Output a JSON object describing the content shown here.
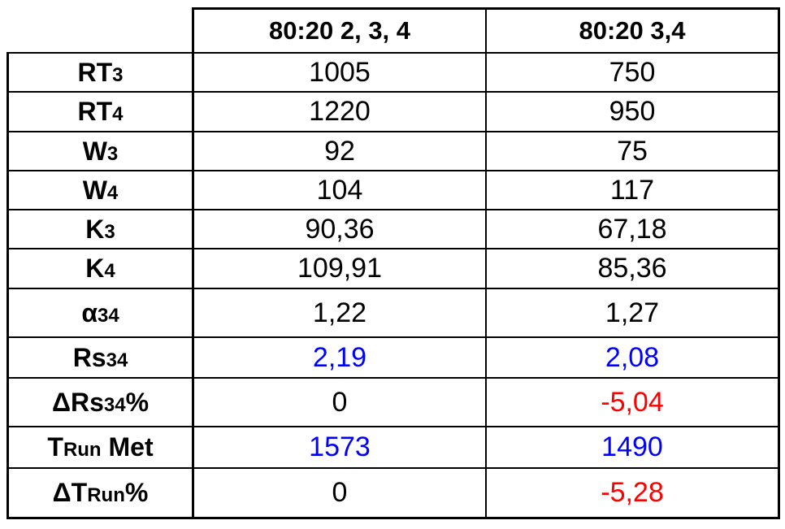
{
  "table": {
    "header": [
      "80:20 2, 3, 4",
      "80:20 3,4"
    ],
    "rows": [
      {
        "label": [
          {
            "text": "RT"
          },
          {
            "text": "3",
            "small": true
          }
        ],
        "cells": [
          {
            "text": "1005"
          },
          {
            "text": "750"
          }
        ]
      },
      {
        "label": [
          {
            "text": "RT"
          },
          {
            "text": "4",
            "small": true
          }
        ],
        "cells": [
          {
            "text": "1220"
          },
          {
            "text": "950"
          }
        ]
      },
      {
        "label": [
          {
            "text": "W"
          },
          {
            "text": "3",
            "small": true
          }
        ],
        "cells": [
          {
            "text": "92"
          },
          {
            "text": "75"
          }
        ]
      },
      {
        "label": [
          {
            "text": "W"
          },
          {
            "text": "4",
            "small": true
          }
        ],
        "cells": [
          {
            "text": "104"
          },
          {
            "text": "117"
          }
        ]
      },
      {
        "label": [
          {
            "text": "K"
          },
          {
            "text": "3",
            "small": true
          }
        ],
        "cells": [
          {
            "text": "90,36"
          },
          {
            "text": "67,18"
          }
        ]
      },
      {
        "label": [
          {
            "text": "K"
          },
          {
            "text": "4",
            "small": true
          }
        ],
        "cells": [
          {
            "text": "109,91"
          },
          {
            "text": "85,36"
          }
        ]
      },
      {
        "label": [
          {
            "text": "α"
          },
          {
            "text": "34",
            "small": true
          }
        ],
        "cells": [
          {
            "text": "1,22"
          },
          {
            "text": "1,27"
          }
        ]
      },
      {
        "label": [
          {
            "text": "Rs"
          },
          {
            "text": "34",
            "small": true
          }
        ],
        "cells": [
          {
            "text": "2,19",
            "color": "#0000ff"
          },
          {
            "text": "2,08",
            "color": "#0000ff"
          }
        ]
      },
      {
        "label": [
          {
            "text": "ΔRs"
          },
          {
            "text": "34",
            "small": true
          },
          {
            "text": "%"
          }
        ],
        "cells": [
          {
            "text": "0"
          },
          {
            "text": "-5,04",
            "color": "#ff0000"
          }
        ]
      },
      {
        "label": [
          {
            "text": "T"
          },
          {
            "text": "Run",
            "small": true
          },
          {
            "text": " Met"
          }
        ],
        "cells": [
          {
            "text": "1573",
            "color": "#0000ff"
          },
          {
            "text": "1490",
            "color": "#0000ff"
          }
        ]
      },
      {
        "label": [
          {
            "text": "ΔT"
          },
          {
            "text": "Run",
            "small": true
          },
          {
            "text": "%"
          }
        ],
        "cells": [
          {
            "text": "0"
          },
          {
            "text": "-5,28",
            "color": "#ff0000"
          }
        ]
      }
    ]
  }
}
